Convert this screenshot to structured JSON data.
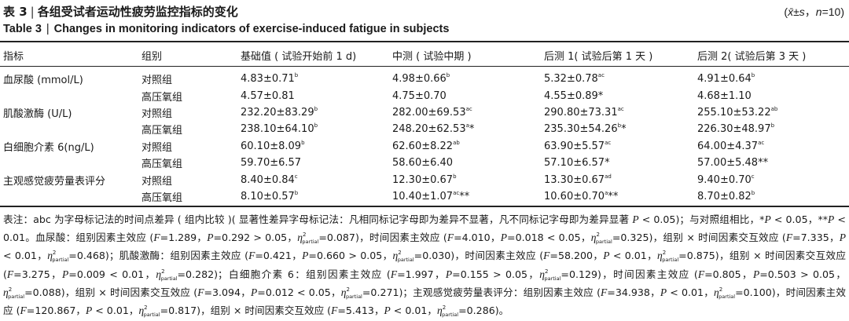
{
  "title_zh": {
    "label": "表 3",
    "text": "各组受试者运动性疲劳监控指标的变化"
  },
  "title_en": {
    "label": "Table 3",
    "text": "Changes in monitoring indicators of exercise-induced fatigue in subjects"
  },
  "stat_note": {
    "open": "(",
    "xbar": "x̄",
    "pm": "±",
    "s": "s",
    "sep": "，",
    "n": "n",
    "eq": "=10)"
  },
  "table": {
    "headers": [
      "指标",
      "组别",
      "基础值 ( 试验开始前 1 d)",
      "中测 ( 试验中期 )",
      "后测 1( 试验后第 1 天 )",
      "后测 2( 试验后第 3 天 )"
    ],
    "rows": [
      {
        "indicator": "血尿酸 (mmol/L)",
        "group": "对照组",
        "cells": [
          {
            "v": "4.83±0.71",
            "sup": "b",
            "tail": ""
          },
          {
            "v": "4.98±0.66",
            "sup": "b",
            "tail": ""
          },
          {
            "v": "5.32±0.78",
            "sup": "ac",
            "tail": ""
          },
          {
            "v": "4.91±0.64",
            "sup": "b",
            "tail": ""
          }
        ]
      },
      {
        "indicator": "",
        "group": "高压氧组",
        "cells": [
          {
            "v": "4.57±0.81",
            "sup": "",
            "tail": ""
          },
          {
            "v": "4.75±0.70",
            "sup": "",
            "tail": ""
          },
          {
            "v": "4.55±0.89",
            "sup": "",
            "tail": "*"
          },
          {
            "v": "4.68±1.10",
            "sup": "",
            "tail": ""
          }
        ]
      },
      {
        "indicator": "肌酸激酶 (U/L)",
        "group": "对照组",
        "cells": [
          {
            "v": "232.20±83.29",
            "sup": "b",
            "tail": ""
          },
          {
            "v": "282.00±69.53",
            "sup": "ac",
            "tail": ""
          },
          {
            "v": "290.80±73.31",
            "sup": "ac",
            "tail": ""
          },
          {
            "v": "255.10±53.22",
            "sup": "ab",
            "tail": ""
          }
        ]
      },
      {
        "indicator": "",
        "group": "高压氧组",
        "cells": [
          {
            "v": "238.10±64.10",
            "sup": "b",
            "tail": ""
          },
          {
            "v": "248.20±62.53",
            "sup": "a",
            "tail": "*"
          },
          {
            "v": "235.30±54.26",
            "sup": "b",
            "tail": "*"
          },
          {
            "v": "226.30±48.97",
            "sup": "b",
            "tail": ""
          }
        ]
      },
      {
        "indicator": "白细胞介素 6(ng/L)",
        "group": "对照组",
        "cells": [
          {
            "v": "60.10±8.09",
            "sup": "b",
            "tail": ""
          },
          {
            "v": "62.60±8.22",
            "sup": "ab",
            "tail": ""
          },
          {
            "v": "63.90±5.57",
            "sup": "ac",
            "tail": ""
          },
          {
            "v": "64.00±4.37",
            "sup": "ac",
            "tail": ""
          }
        ]
      },
      {
        "indicator": "",
        "group": "高压氧组",
        "cells": [
          {
            "v": "59.70±6.57",
            "sup": "",
            "tail": ""
          },
          {
            "v": "58.60±6.40",
            "sup": "",
            "tail": ""
          },
          {
            "v": "57.10±6.57",
            "sup": "",
            "tail": "*"
          },
          {
            "v": "57.00±5.48",
            "sup": "",
            "tail": "**"
          }
        ]
      },
      {
        "indicator": "主观感觉疲劳量表评分",
        "group": "对照组",
        "cells": [
          {
            "v": "8.40±0.84",
            "sup": "c",
            "tail": ""
          },
          {
            "v": "12.30±0.67",
            "sup": "b",
            "tail": ""
          },
          {
            "v": "13.30±0.67",
            "sup": "ad",
            "tail": ""
          },
          {
            "v": "9.40±0.70",
            "sup": "c",
            "tail": ""
          }
        ]
      },
      {
        "indicator": "",
        "group": "高压氧组",
        "cells": [
          {
            "v": "8.10±0.57",
            "sup": "b",
            "tail": ""
          },
          {
            "v": "10.40±1.07",
            "sup": "ac",
            "tail": "**"
          },
          {
            "v": "10.60±0.70",
            "sup": "a",
            "tail": "**"
          },
          {
            "v": "8.70±0.82",
            "sup": "b",
            "tail": ""
          }
        ]
      }
    ]
  },
  "note": {
    "t01": "表注：abc 为字母标记法的时间点差异 ( 组内比较 )( 显著性差异字母标记法：凡相同标记字母即为差异不显著，凡不同标记字母即为差异显著 ",
    "t02": "P",
    "t03": " < 0.05)；与对照组相比，",
    "t04": "*",
    "t05": "P",
    "t06": " < 0.05，**",
    "t07": "P",
    "t08": " < 0.01。血尿酸：组别因素主效应 (",
    "t09": "F",
    "t10": "=1.289，",
    "t11": "P",
    "t12": "=0.292 > 0.05，",
    "t13": "η",
    "t14": "2",
    "t15": "partial",
    "t16": "=0.087)，时间因素主效应 (",
    "t17": "F",
    "t18": "=4.010，",
    "t19": "P",
    "t20": "=0.018 < 0.05，",
    "t21": "η",
    "t22": "2",
    "t23": "partial",
    "t24": "=0.325)，组别 × 时间因素交互效应 (",
    "t25": "F",
    "t26": "=7.335，",
    "t27": "P",
    "t28": " < 0.01，",
    "t29": "η",
    "t30": "2",
    "t31": "partial",
    "t32": "=0.468)；肌酸激酶：组别因素主效应 (",
    "t33": "F",
    "t34": "=0.421，",
    "t35": "P",
    "t36": "=0.660 > 0.05，",
    "t37": "η",
    "t38": "2",
    "t39": "partial",
    "t40": "=0.030)，时间因素主效应 (",
    "t41": "F",
    "t42": "=58.200，",
    "t43": "P",
    "t44": " < 0.01，",
    "t45": "η",
    "t46": "2",
    "t47": "partial",
    "t48": "=0.875)，组别 × 时间因素交互效应 (",
    "t49": "F",
    "t50": "=3.275，",
    "t51": "P",
    "t52": "=0.009 < 0.01，",
    "t53": "η",
    "t54": "2",
    "t55": "partial",
    "t56": "=0.282)；白细胞介素 6：组别因素主效应 (",
    "t57": "F",
    "t58": "=1.997，",
    "t59": "P",
    "t60": "=0.155 > 0.05，",
    "t61": "η",
    "t62": "2",
    "t63": "partial",
    "t64": "=0.129)，时间因素主效应 (",
    "t65": "F",
    "t66": "=0.805，",
    "t67": "P",
    "t68": "=0.503 > 0.05，",
    "t69": "η",
    "t70": "2",
    "t71": "partial",
    "t72": "=0.088)，组别 × 时间因素交互效应 (",
    "t73": "F",
    "t74": "=3.094，",
    "t75": "P",
    "t76": "=0.012 < 0.05，",
    "t77": "η",
    "t78": "2",
    "t79": "partial",
    "t80": "=0.271)；主观感觉疲劳量表评分：组别因素主效应 (",
    "t81": "F",
    "t82": "=34.938，",
    "t83": "P",
    "t84": " < 0.01，",
    "t85": "η",
    "t86": "2",
    "t87": "partial",
    "t88": "=0.100)，时间因素主效应 (",
    "t89": "F",
    "t90": "=120.867，",
    "t91": "P",
    "t92": " < 0.01，",
    "t93": "η",
    "t94": "2",
    "t95": "partial",
    "t96": "=0.817)，组别 × 时间因素交互效应 (",
    "t97": "F",
    "t98": "=5.413，",
    "t99": "P",
    "t100": " < 0.01，",
    "t101": "η",
    "t102": "2",
    "t103": "partial",
    "t104": "=0.286)。"
  }
}
